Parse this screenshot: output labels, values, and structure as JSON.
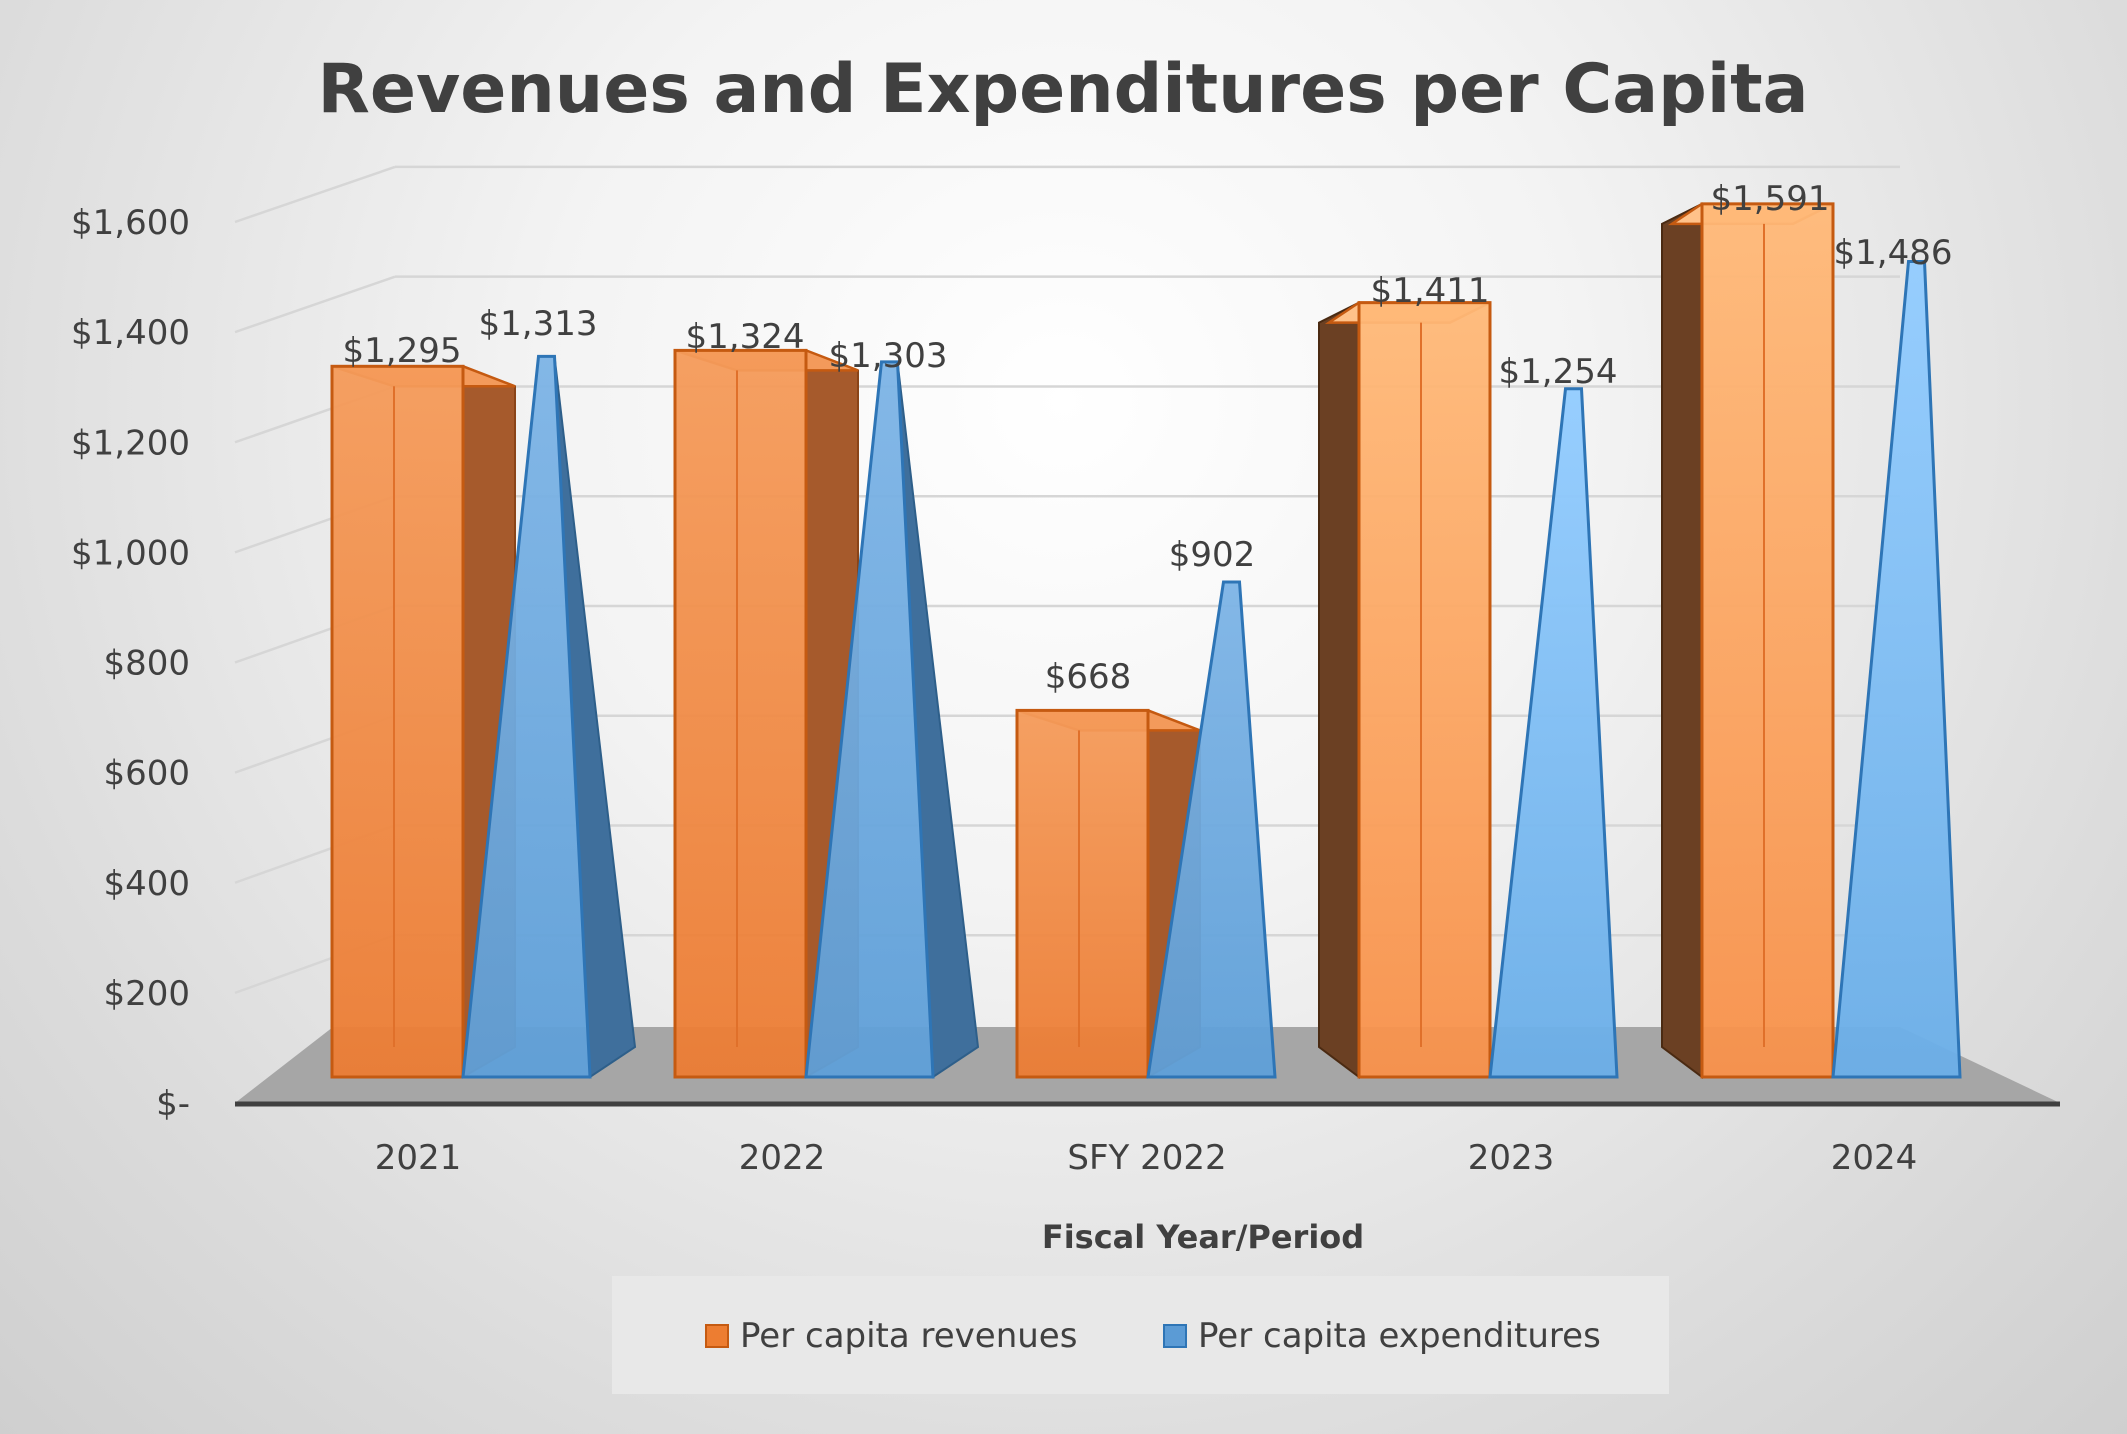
{
  "chart_data": {
    "type": "bar",
    "title": "Revenues and Expenditures per Capita",
    "xlabel": "Fiscal Year/Period",
    "ylabel": "",
    "categories": [
      "2021",
      "2022",
      "SFY 2022",
      "2023",
      "2024"
    ],
    "series": [
      {
        "name": "Per capita revenues",
        "values": [
          1295,
          1324,
          668,
          1411,
          1591
        ],
        "labels": [
          "$1,295",
          "$1,324",
          "$668",
          "$1,411",
          "$1,591"
        ],
        "color": "#ED7D31",
        "shape": "box"
      },
      {
        "name": "Per capita expenditures",
        "values": [
          1313,
          1303,
          902,
          1254,
          1486
        ],
        "labels": [
          "$1,313",
          "$1,303",
          "$902",
          "$1,254",
          "$1,486"
        ],
        "color": "#5B9BD5",
        "shape": "pyramid"
      }
    ],
    "ylim": [
      0,
      1600
    ],
    "yticks": [
      0,
      200,
      400,
      600,
      800,
      1000,
      1200,
      1400,
      1600
    ],
    "ytick_labels": [
      "$-",
      "$200",
      "$400",
      "$600",
      "$800",
      "$1,000",
      "$1,200",
      "$1,400",
      "$1,600"
    ],
    "grid": true,
    "legend_position": "bottom"
  }
}
